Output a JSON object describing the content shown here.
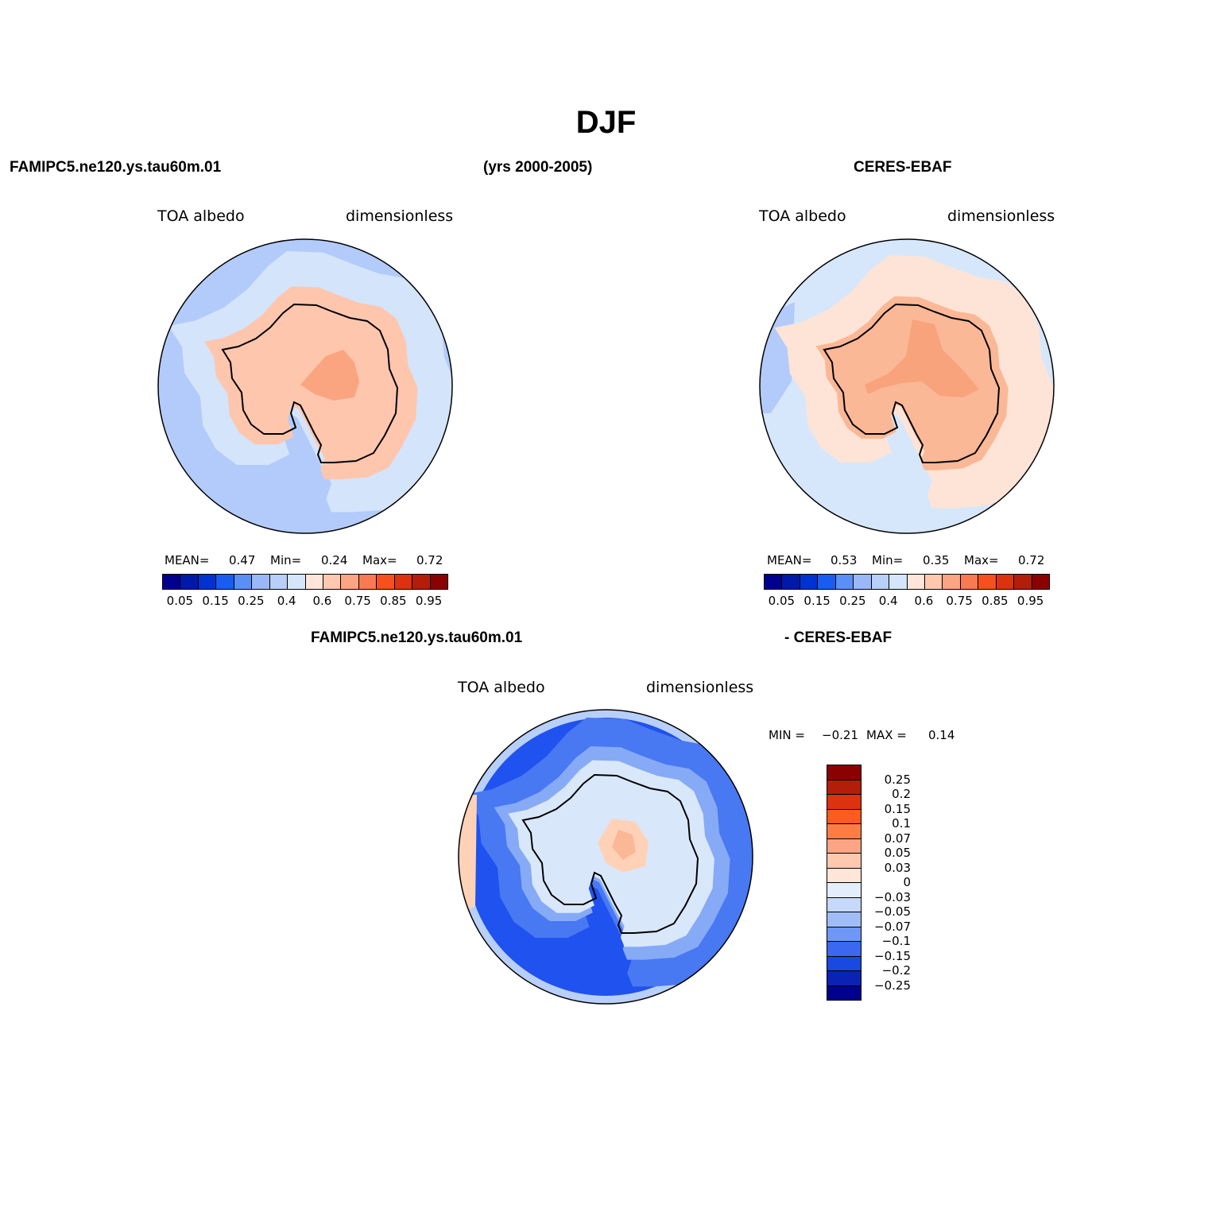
{
  "page": {
    "title": "DJF",
    "model_name": "FAMIPC5.ne120.ys.tau60m.01",
    "years": "(yrs 2000-2005)",
    "obs_name": "CERES-EBAF",
    "diff_left": "FAMIPC5.ne120.ys.tau60m.01",
    "diff_right": "- CERES-EBAF"
  },
  "panels": {
    "model": {
      "variable": "TOA albedo",
      "units": "dimensionless",
      "mean_label": "MEAN=",
      "mean": "0.47",
      "min_label": "Min=",
      "min": "0.24",
      "max_label": "Max=",
      "max": "0.72"
    },
    "obs": {
      "variable": "TOA albedo",
      "units": "dimensionless",
      "mean_label": "MEAN=",
      "mean": "0.53",
      "min_label": "Min=",
      "min": "0.35",
      "max_label": "Max=",
      "max": "0.72"
    },
    "diff": {
      "variable": "TOA albedo",
      "units": "dimensionless",
      "min_label": "MIN =",
      "min": "−0.21",
      "max_label": "MAX =",
      "max": "0.14"
    }
  },
  "colorbars": {
    "field": {
      "colors": [
        "#00008f",
        "#0019a8",
        "#0032d2",
        "#1a5cf0",
        "#5b8ff5",
        "#9ab8f7",
        "#b8cff8",
        "#d5e6fb",
        "#ffe6d8",
        "#ffc9b0",
        "#fba585",
        "#f87a52",
        "#f4511e",
        "#dc320f",
        "#b31e0a",
        "#8b0000"
      ],
      "labels": [
        "0.05",
        "0.15",
        "0.25",
        "0.4",
        "0.6",
        "0.75",
        "0.85",
        "0.95"
      ]
    },
    "diff": {
      "colors": [
        "#8b0000",
        "#b31e0a",
        "#dc320f",
        "#ff5a1f",
        "#ff7d45",
        "#fba585",
        "#ffc9b0",
        "#ffe6d8",
        "#e4eefb",
        "#c6d9fa",
        "#a0bdf7",
        "#6e98f5",
        "#3a68f0",
        "#1a48e2",
        "#0b22b4",
        "#00008f"
      ],
      "labels": [
        "0.25",
        "0.2",
        "0.15",
        "0.1",
        "0.07",
        "0.05",
        "0.03",
        "0",
        "−0.03",
        "−0.05",
        "−0.07",
        "−0.1",
        "−0.15",
        "−0.2",
        "−0.25"
      ]
    }
  },
  "map_colors": {
    "model": {
      "ocean": "#b3cbfa",
      "band": "#d4e4fb",
      "land": "#ffc6ae",
      "high": "#faa57f"
    },
    "obs": {
      "ocean": "#d6e7fc",
      "band": "#fde4d6",
      "land": "#fbb896",
      "high": "#f8a37c",
      "edge": "#b3cbfa"
    },
    "diff": {
      "outer": "#b8cff9",
      "ocean": "#1f52ee",
      "mid": "#4878f2",
      "ring": "#86aaf6",
      "land": "#d9e7fb",
      "pos": "#ffd2b8",
      "pos2": "#fbb896"
    }
  }
}
